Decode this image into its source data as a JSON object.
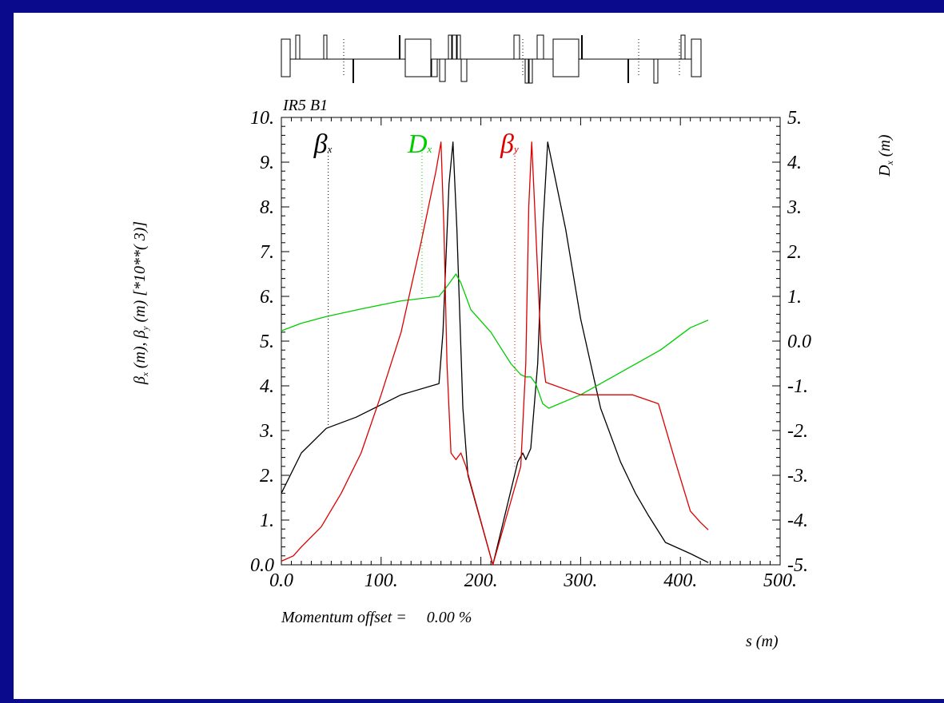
{
  "chart_data": {
    "type": "line",
    "title": "IR5 B1",
    "xlabel": "s (m)",
    "xlim": [
      0,
      500
    ],
    "x_ticks": [
      "0.0",
      "100.",
      "200.",
      "300.",
      "400.",
      "500."
    ],
    "y_left": {
      "label_parts": [
        "β",
        "x",
        " (m),  ",
        "β",
        "y",
        " (m)",
        "     [*10**(   3)]"
      ],
      "lim": [
        0,
        10
      ],
      "ticks": [
        "0.0",
        "1.",
        "2.",
        "3.",
        "4.",
        "5.",
        "6.",
        "7.",
        "8.",
        "9.",
        "10."
      ]
    },
    "y_right": {
      "label": "D",
      "label_sub": "x",
      "label_unit": " (m)",
      "lim": [
        -5,
        5
      ],
      "ticks": [
        "-5.",
        "-4.",
        "-3.",
        "-2.",
        "-1.",
        "0.0",
        "1.",
        "2.",
        "3.",
        "4.",
        "5."
      ]
    },
    "annotation": "Momentum offset =     0.00 %",
    "series": [
      {
        "name": "β",
        "sub": "x",
        "axis": "left",
        "color": "#000000",
        "label_x": 47,
        "points": [
          [
            0,
            1.6
          ],
          [
            20,
            2.5
          ],
          [
            45,
            3.05
          ],
          [
            75,
            3.3
          ],
          [
            120,
            3.8
          ],
          [
            158,
            4.05
          ],
          [
            162,
            5.2
          ],
          [
            168,
            8.5
          ],
          [
            172,
            9.45
          ],
          [
            176,
            7.5
          ],
          [
            182,
            3.5
          ],
          [
            187,
            2.0
          ],
          [
            212,
            0.0
          ],
          [
            237,
            2.3
          ],
          [
            242,
            2.5
          ],
          [
            245,
            2.35
          ],
          [
            250,
            2.6
          ],
          [
            257,
            4.5
          ],
          [
            262,
            7.5
          ],
          [
            267,
            9.45
          ],
          [
            285,
            7.5
          ],
          [
            300,
            5.5
          ],
          [
            320,
            3.5
          ],
          [
            340,
            2.3
          ],
          [
            355,
            1.6
          ],
          [
            368,
            1.1
          ],
          [
            385,
            0.5
          ],
          [
            410,
            0.25
          ],
          [
            428,
            0.05
          ]
        ]
      },
      {
        "name": "D",
        "sub": "x",
        "axis": "right",
        "color": "#00cc00",
        "label_x": 141,
        "points": [
          [
            0,
            0.23
          ],
          [
            20,
            0.4
          ],
          [
            45,
            0.55
          ],
          [
            80,
            0.72
          ],
          [
            120,
            0.9
          ],
          [
            158,
            1.0
          ],
          [
            167,
            1.25
          ],
          [
            175,
            1.5
          ],
          [
            180,
            1.3
          ],
          [
            185,
            1.0
          ],
          [
            190,
            0.7
          ],
          [
            210,
            0.2
          ],
          [
            230,
            -0.5
          ],
          [
            240,
            -0.75
          ],
          [
            245,
            -0.8
          ],
          [
            250,
            -0.8
          ],
          [
            255,
            -0.95
          ],
          [
            262,
            -1.4
          ],
          [
            268,
            -1.5
          ],
          [
            300,
            -1.2
          ],
          [
            340,
            -0.7
          ],
          [
            380,
            -0.2
          ],
          [
            410,
            0.3
          ],
          [
            428,
            0.47
          ]
        ]
      },
      {
        "name": "β",
        "sub": "y",
        "axis": "left",
        "color": "#dd0000",
        "label_x": 234,
        "points": [
          [
            0,
            0.08
          ],
          [
            12,
            0.2
          ],
          [
            20,
            0.4
          ],
          [
            40,
            0.85
          ],
          [
            60,
            1.6
          ],
          [
            80,
            2.5
          ],
          [
            100,
            3.8
          ],
          [
            120,
            5.2
          ],
          [
            140,
            7.2
          ],
          [
            155,
            8.8
          ],
          [
            160,
            9.45
          ],
          [
            163,
            7.5
          ],
          [
            166,
            4.5
          ],
          [
            170,
            2.5
          ],
          [
            175,
            2.35
          ],
          [
            180,
            2.5
          ],
          [
            185,
            2.2
          ],
          [
            212,
            0.0
          ],
          [
            240,
            2.2
          ],
          [
            245,
            4.5
          ],
          [
            248,
            8.0
          ],
          [
            251,
            9.45
          ],
          [
            255,
            7.5
          ],
          [
            260,
            5.0
          ],
          [
            265,
            4.08
          ],
          [
            300,
            3.8
          ],
          [
            352,
            3.8
          ],
          [
            378,
            3.6
          ],
          [
            395,
            2.3
          ],
          [
            410,
            1.2
          ],
          [
            420,
            0.95
          ],
          [
            428,
            0.78
          ]
        ]
      }
    ]
  }
}
